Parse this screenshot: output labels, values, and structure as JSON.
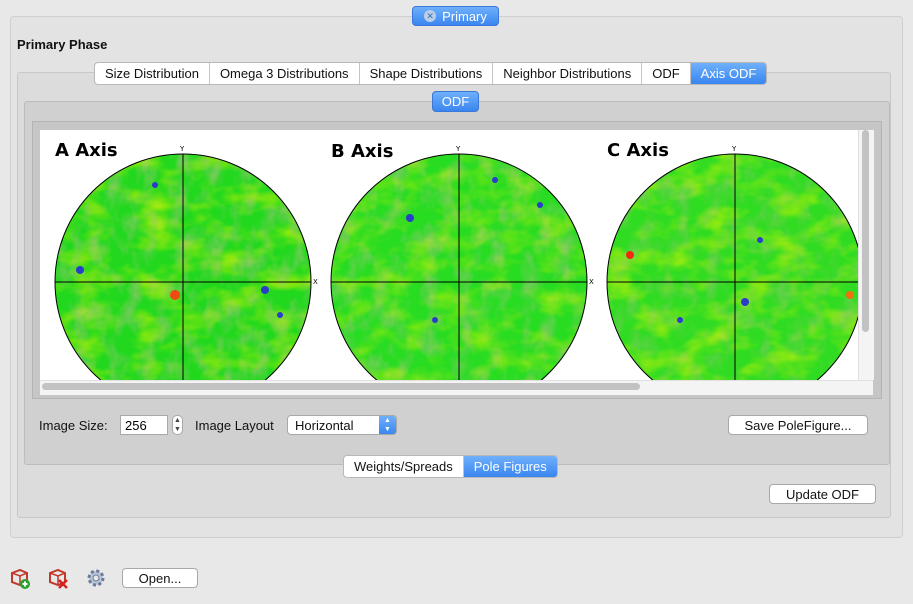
{
  "top_tab": {
    "label": "Primary"
  },
  "section_title": "Primary Phase",
  "tabs": [
    {
      "label": "Size Distribution",
      "active": false
    },
    {
      "label": "Omega 3 Distributions",
      "active": false
    },
    {
      "label": "Shape Distributions",
      "active": false
    },
    {
      "label": "Neighbor Distributions",
      "active": false
    },
    {
      "label": "ODF",
      "active": false
    },
    {
      "label": "Axis ODF",
      "active": true
    }
  ],
  "sub_tab": {
    "label": "ODF"
  },
  "pole_figures": [
    {
      "title": "A Axis",
      "y_label": "Y",
      "x_label": "X"
    },
    {
      "title": "B Axis",
      "y_label": "Y",
      "x_label": "X"
    },
    {
      "title": "C Axis",
      "y_label": "Y",
      "x_label": "X"
    }
  ],
  "controls": {
    "image_size_label": "Image Size:",
    "image_size_value": "256",
    "image_layout_label": "Image Layout",
    "image_layout_value": "Horizontal",
    "save_button": "Save PoleFigure..."
  },
  "bottom_tabs": [
    {
      "label": "Weights/Spreads",
      "active": false
    },
    {
      "label": "Pole Figures",
      "active": true
    }
  ],
  "update_button": "Update ODF",
  "footer": {
    "open_button": "Open..."
  },
  "colors": {
    "accent": "#3a86f0",
    "green": "#22d81e",
    "yellow": "#e6f000",
    "olive": "#6c8a3a",
    "blue": "#2a3ccc",
    "red": "#f02a10"
  }
}
